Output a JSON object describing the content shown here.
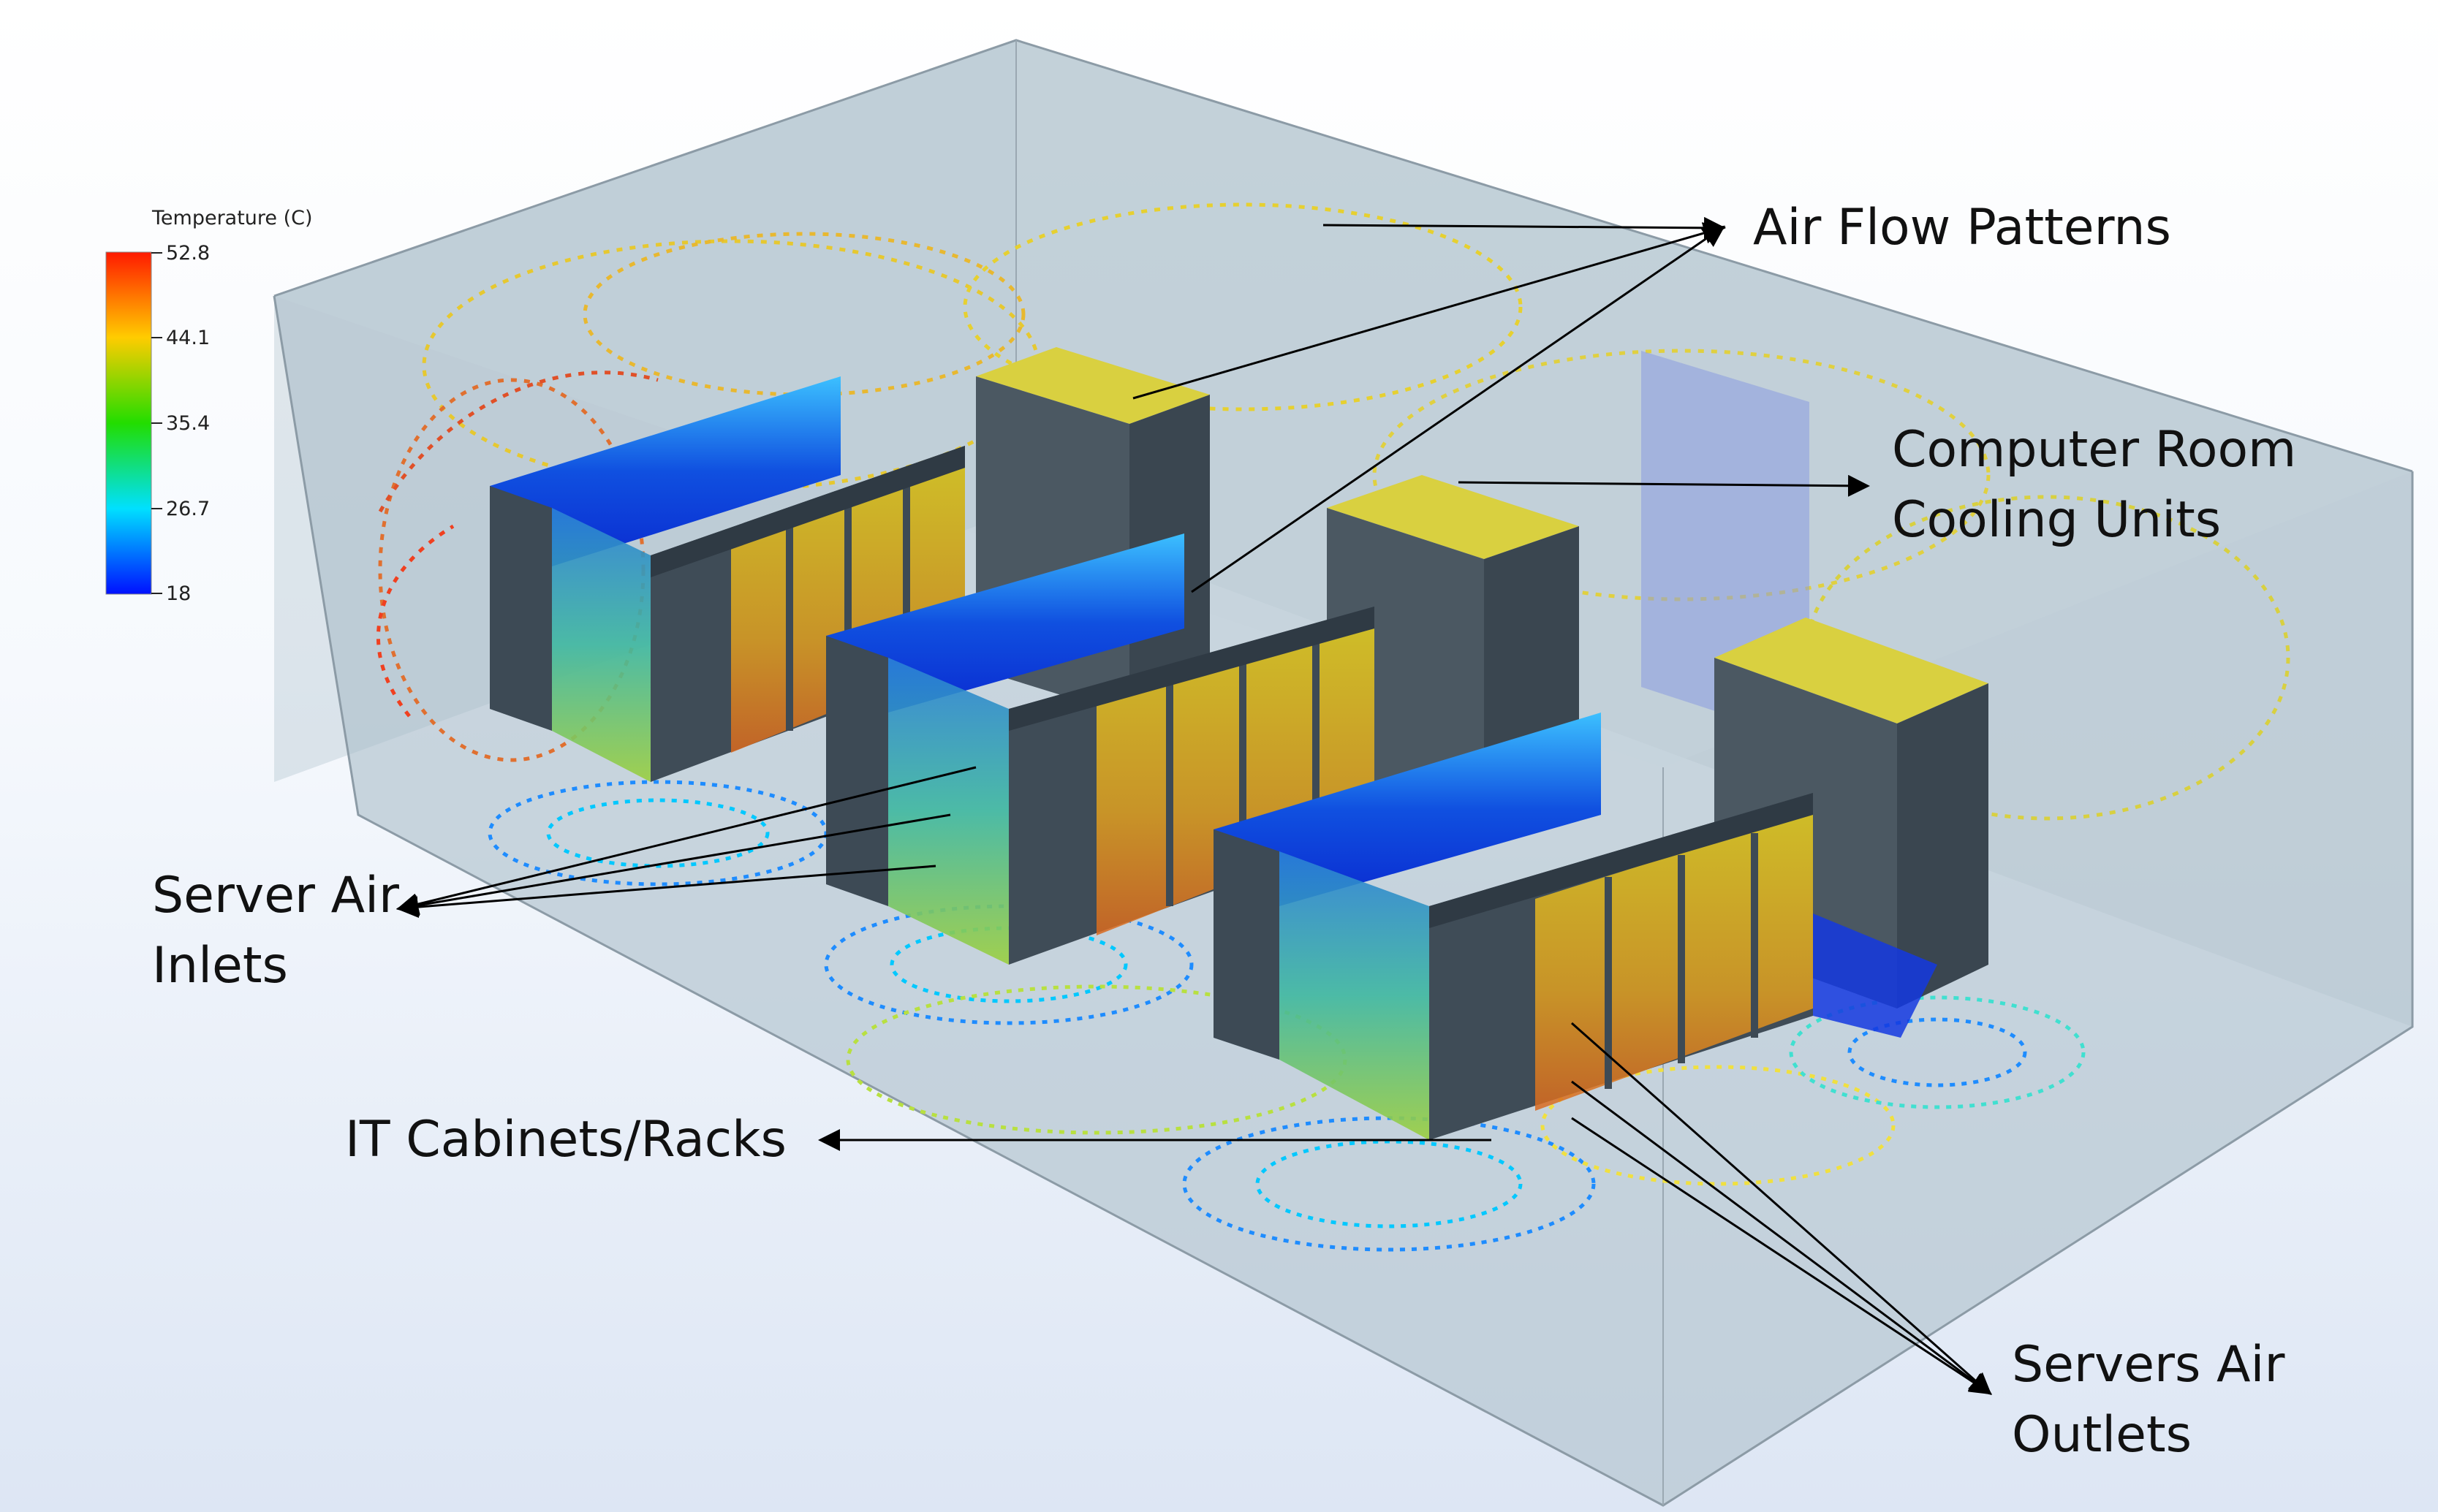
{
  "legend": {
    "title": "Temperature (C)",
    "ticks": [
      "52.8",
      "44.1",
      "35.4",
      "26.7",
      "18"
    ],
    "colors": [
      "#ff1a00",
      "#ffff00",
      "#00e600",
      "#00ffff",
      "#0000ff"
    ]
  },
  "labels": {
    "air_flow": "Air Flow Patterns",
    "cooling_line1": "Computer Room",
    "cooling_line2": "Cooling Units",
    "inlets_line1": "Server Air",
    "inlets_line2": "Inlets",
    "cabinets": "IT Cabinets/Racks",
    "outlets_line1": "Servers Air",
    "outlets_line2": "Outlets"
  },
  "colors": {
    "room": "#b6c6d1",
    "cabinet": "#3d4a55",
    "arrow": "#000000"
  }
}
